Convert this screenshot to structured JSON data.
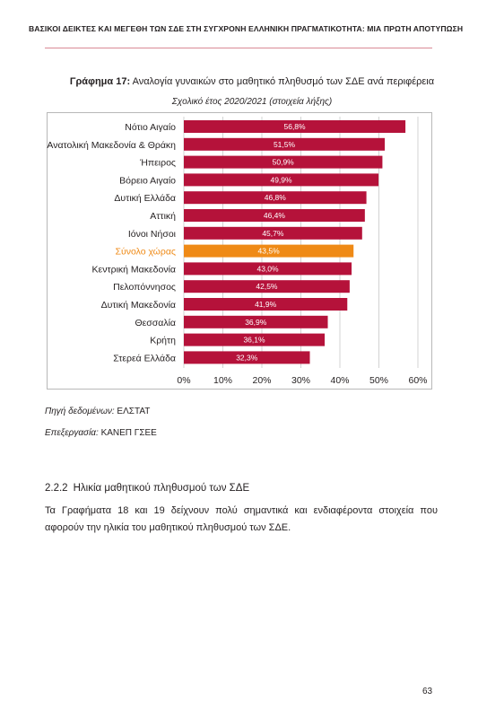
{
  "page": {
    "running_header": "ΒΑΣΙΚΟΙ ΔΕΙΚΤΕΣ ΚΑΙ ΜΕΓΕΘΗ ΤΩΝ ΣΔΕ ΣΤΗ ΣΥΓΧΡΟΝΗ ΕΛΛΗΝΙΚΗ ΠΡΑΓΜΑΤΙΚΟΤΗΤΑ: ΜΙΑ ΠΡΩΤΗ ΑΠΟΤΥΠΩΣΗ",
    "page_number": "63"
  },
  "figure": {
    "label": "Γράφημα 17:",
    "caption": "Αναλογία γυναικών στο μαθητικό πληθυσμό των ΣΔΕ ανά περιφέρεια",
    "subtitle": "Σχολικό έτος 2020/2021 (στοιχεία λήξης)",
    "source_label": "Πηγή δεδομένων:",
    "source_value": "ΕΛΣΤΑΤ",
    "processing_label": "Επεξεργασία:",
    "processing_value": "ΚΑΝΕΠ ΓΣΕΕ"
  },
  "section": {
    "number": "2.2.2",
    "title": "Ηλικία μαθητικού πληθυσμού των ΣΔΕ",
    "body": "Τα Γραφήματα 18 και 19 δείχνουν πολύ σημαντικά και ενδιαφέροντα στοιχεία που αφορούν την ηλικία του μαθητικού πληθυσμού των ΣΔΕ."
  },
  "colors": {
    "bar": "#b5123a",
    "highlight": "#ef8a16",
    "grid": "#c8c8c8",
    "text": "#231f20"
  },
  "chart_data": {
    "type": "bar",
    "orientation": "horizontal",
    "title": "Αναλογία γυναικών στο μαθητικό πληθυσμό των ΣΔΕ ανά περιφέρεια",
    "subtitle": "Σχολικό έτος 2020/2021 (στοιχεία λήξης)",
    "categories": [
      "Νότιο Αιγαίο",
      "Ανατολική Μακεδονία & Θράκη",
      "Ήπειρος",
      "Βόρειο Αιγαίο",
      "Δυτική Ελλάδα",
      "Αττική",
      "Ιόνοι Νήσοι",
      "Σύνολο χώρας",
      "Κεντρική Μακεδονία",
      "Πελοπόννησος",
      "Δυτική Μακεδονία",
      "Θεσσαλία",
      "Κρήτη",
      "Στερεά Ελλάδα"
    ],
    "values": [
      56.8,
      51.5,
      50.9,
      49.9,
      46.8,
      46.4,
      45.7,
      43.5,
      43.0,
      42.5,
      41.9,
      36.9,
      36.1,
      32.3
    ],
    "value_labels": [
      "56,8%",
      "51,5%",
      "50,9%",
      "49,9%",
      "46,8%",
      "46,4%",
      "45,7%",
      "43,5%",
      "43,0%",
      "42,5%",
      "41,9%",
      "36,9%",
      "36,1%",
      "32,3%"
    ],
    "highlight_category": "Σύνολο χώρας",
    "xlim": [
      0,
      60
    ],
    "xticks": [
      0,
      10,
      20,
      30,
      40,
      50,
      60
    ],
    "xtick_labels": [
      "0%",
      "10%",
      "20%",
      "30%",
      "40%",
      "50%",
      "60%"
    ],
    "grid": true,
    "legend": "none"
  }
}
